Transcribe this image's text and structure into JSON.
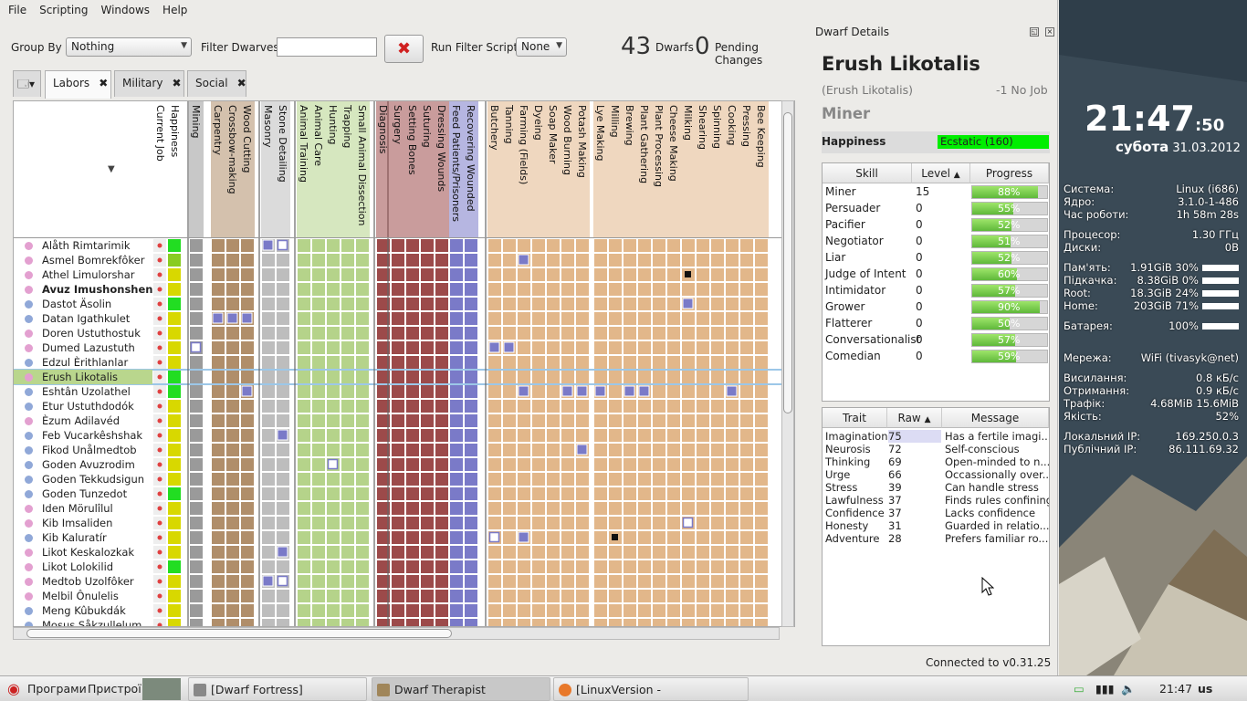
{
  "menu": [
    "File",
    "Scripting",
    "Windows",
    "Help"
  ],
  "toolbar": {
    "group_by_label": "Group By",
    "group_by_value": "Nothing",
    "filter_label": "Filter Dwarves",
    "filter_value": "",
    "run_script_label": "Run Filter Script",
    "run_script_value": "None",
    "dwarf_count": "43",
    "dwarfs_label": "Dwarfs",
    "pending_count": "0",
    "pending_label": "Pending Changes"
  },
  "tabs": [
    {
      "label": "Labors"
    },
    {
      "label": "Military"
    },
    {
      "label": "Social"
    }
  ],
  "columns": [
    "Current Job",
    "Happiness",
    "Mining",
    "Carpentry",
    "Crossbow-making",
    "Wood Cutting",
    "Masonry",
    "Stone Detailing",
    "Animal Training",
    "Animal Care",
    "Hunting",
    "Trapping",
    "Small Animal Dissection",
    "Diagnosis",
    "Surgery",
    "Setting Bones",
    "Suturing",
    "Dressing Wounds",
    "Feed Patients/Prisoners",
    "Recovering Wounded",
    "Butchery",
    "Tanning",
    "Farming (Fields)",
    "Dyeing",
    "Soap Maker",
    "Wood Burning",
    "Potash Making",
    "Lye Making",
    "Milling",
    "Brewing",
    "Plant Gathering",
    "Plant Processing",
    "Cheese Making",
    "Milking",
    "Shearing",
    "Spinning",
    "Cooking",
    "Pressing",
    "Bee Keeping"
  ],
  "dwarves": [
    {
      "name": "Alåth Rimtarimik",
      "g": "f"
    },
    {
      "name": "Asmel Bomrekfôker",
      "g": "f"
    },
    {
      "name": "Athel Limulorshar",
      "g": "f"
    },
    {
      "name": "Avuz Imushonshen",
      "g": "f",
      "bold": true
    },
    {
      "name": "Dastot Äsolin",
      "g": "m"
    },
    {
      "name": "Datan Igathkulet",
      "g": "m"
    },
    {
      "name": "Doren Ustuthostuk",
      "g": "f"
    },
    {
      "name": "Dumed Lazustuth",
      "g": "f"
    },
    {
      "name": "Edzul Èrithlanlar",
      "g": "m"
    },
    {
      "name": "Erush Likotalis",
      "g": "f",
      "sel": true
    },
    {
      "name": "Eshtân Uzolathel",
      "g": "m"
    },
    {
      "name": "Etur Ustuthdodók",
      "g": "m"
    },
    {
      "name": "Èzum Adilavéd",
      "g": "f"
    },
    {
      "name": "Feb Vucarkêshshak",
      "g": "m"
    },
    {
      "name": "Fikod Unålmedtob",
      "g": "m"
    },
    {
      "name": "Goden Avuzrodim",
      "g": "m"
    },
    {
      "name": "Goden Tekkudsigun",
      "g": "m"
    },
    {
      "name": "Goden Tunzedot",
      "g": "m"
    },
    {
      "name": "Iden Mörulîlul",
      "g": "f"
    },
    {
      "name": "Kib Imsaliden",
      "g": "f"
    },
    {
      "name": "Kib Kaluratír",
      "g": "m"
    },
    {
      "name": "Likot Keskalozkak",
      "g": "f"
    },
    {
      "name": "Likot Lolokilid",
      "g": "f"
    },
    {
      "name": "Medtob Uzolfôker",
      "g": "f"
    },
    {
      "name": "Melbil Ônulelis",
      "g": "f"
    },
    {
      "name": "Meng Kûbukdák",
      "g": "m"
    },
    {
      "name": "Mosus Såkzullelum",
      "g": "m"
    }
  ],
  "happiness_colors": [
    "#22dd22",
    "#88cc22",
    "#d8d800",
    "#d8d800",
    "#22dd22",
    "#d8d800",
    "#d8d800",
    "#d8d800",
    "#d8d800",
    "#22dd22",
    "#22dd22",
    "#d8d800",
    "#d8d800",
    "#d8d800",
    "#d8d800",
    "#d8d800",
    "#d8d800",
    "#22dd22",
    "#d8d800",
    "#d8d800",
    "#d8d800",
    "#d8d800",
    "#22dd22",
    "#d8d800",
    "#d8d800",
    "#d8d800",
    "#d8d800"
  ],
  "dock": {
    "title": "Dwarf Details",
    "name": "Erush Likotalis",
    "nickname": "(Erush Likotalis)",
    "job": "-1 No Job",
    "profession": "Miner",
    "happiness_label": "Happiness",
    "happiness_value": "Ecstatic (160)",
    "skill_headers": [
      "Skill",
      "Level",
      "Progress"
    ],
    "skills": [
      {
        "skill": "Miner",
        "level": "15",
        "progress": "88%",
        "pct": 88
      },
      {
        "skill": "Persuader",
        "level": "0",
        "progress": "55%",
        "pct": 55
      },
      {
        "skill": "Pacifier",
        "level": "0",
        "progress": "52%",
        "pct": 52
      },
      {
        "skill": "Negotiator",
        "level": "0",
        "progress": "51%",
        "pct": 51
      },
      {
        "skill": "Liar",
        "level": "0",
        "progress": "52%",
        "pct": 52
      },
      {
        "skill": "Judge of Intent",
        "level": "0",
        "progress": "60%",
        "pct": 60
      },
      {
        "skill": "Intimidator",
        "level": "0",
        "progress": "57%",
        "pct": 57
      },
      {
        "skill": "Grower",
        "level": "0",
        "progress": "90%",
        "pct": 90
      },
      {
        "skill": "Flatterer",
        "level": "0",
        "progress": "50%",
        "pct": 50
      },
      {
        "skill": "Conversationalist",
        "level": "0",
        "progress": "57%",
        "pct": 57
      },
      {
        "skill": "Comedian",
        "level": "0",
        "progress": "59%",
        "pct": 59
      }
    ],
    "trait_headers": [
      "Trait",
      "Raw",
      "Message"
    ],
    "traits": [
      {
        "trait": "Imagination",
        "raw": "75",
        "msg": "Has a fertile imagi..."
      },
      {
        "trait": "Neurosis",
        "raw": "72",
        "msg": "Self-conscious"
      },
      {
        "trait": "Thinking",
        "raw": "69",
        "msg": "Open-minded to n..."
      },
      {
        "trait": "Urge",
        "raw": "66",
        "msg": "Occassionally over..."
      },
      {
        "trait": "Stress",
        "raw": "39",
        "msg": "Can handle stress"
      },
      {
        "trait": "Lawfulness",
        "raw": "37",
        "msg": "Finds rules confining"
      },
      {
        "trait": "Confidence",
        "raw": "37",
        "msg": "Lacks confidence"
      },
      {
        "trait": "Honesty",
        "raw": "31",
        "msg": "Guarded in relatio..."
      },
      {
        "trait": "Adventure",
        "raw": "28",
        "msg": "Prefers familiar ro..."
      }
    ],
    "connected": "Connected to v0.31.25"
  },
  "desktop": {
    "time": "21:47",
    "seconds": ":50",
    "weekday": "субота",
    "date": "31.03.2012",
    "sys": [
      {
        "l": "Система:",
        "r": "Linux (i686)"
      },
      {
        "l": "Ядро:",
        "r": "3.1.0-1-486"
      },
      {
        "l": "Час роботи:",
        "r": "1h 58m 28s"
      },
      {
        "l": "Процесор:",
        "r": "1.30 ГГц"
      },
      {
        "l": "Диски:",
        "r": "0B"
      },
      {
        "l": "Пам'ять:",
        "r": "1.91GiB 30%"
      },
      {
        "l": "Підкачка:",
        "r": "8.38GiB 0%"
      },
      {
        "l": "Root:",
        "r": "18.3GiB 24%"
      },
      {
        "l": "Home:",
        "r": "203GiB 71%"
      },
      {
        "l": "Батарея:",
        "r": "100%"
      },
      {
        "l": "Мережа:",
        "r": "WiFi (tivasyk@net)"
      },
      {
        "l": "Висилання:",
        "r": "0.8 кБ/с"
      },
      {
        "l": "Отримання:",
        "r": "0.9 кБ/с"
      },
      {
        "l": "Трафік:",
        "r": "4.68MiB 15.6MiB"
      },
      {
        "l": "Якість:",
        "r": "52%"
      },
      {
        "l": "Локальний IP:",
        "r": "169.250.0.3"
      },
      {
        "l": "Публічний IP:",
        "r": "86.111.69.32"
      }
    ]
  },
  "taskbar": {
    "programs": "Програми",
    "devices": "Пристрої",
    "tasks": [
      "[Dwarf Fortress]",
      "Dwarf Therapist",
      "[LinuxVersion - dwarftherapist ..."
    ],
    "time": "21:47",
    "lang": "us"
  },
  "colors": {
    "mining": "#9a9a9a",
    "wood": "#b08e6a",
    "stone": "#bdbdbd",
    "animal": "#b5d38a",
    "medical": "#9c4a4a",
    "medical_blue": "#7a7ac8",
    "farm": "#e2b78a",
    "selected_row": "#b9d68d"
  }
}
